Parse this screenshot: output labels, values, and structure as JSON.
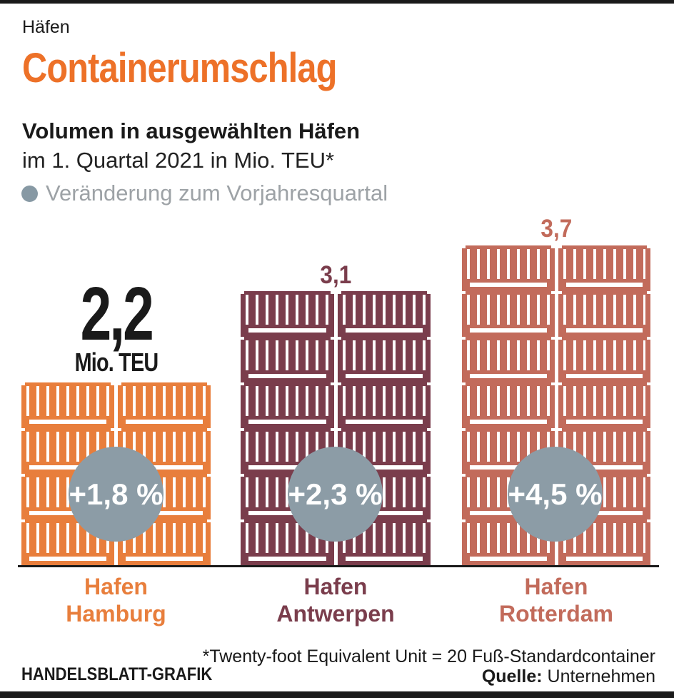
{
  "header": {
    "kicker": "Häfen",
    "title": "Containerumschlag",
    "subtitle_bold": "Volumen in ausgewählten Häfen",
    "subtitle": "im 1. Quartal 2021 in Mio. TEU*",
    "legend_label": "Veränderung zum Vorjahresquartal"
  },
  "chart_data": {
    "type": "bar",
    "title": "Containerumschlag",
    "subtitle": "Volumen in ausgewählten Häfen im 1. Quartal 2021 in Mio. TEU*",
    "unit": "Mio. TEU",
    "legend": "Veränderung zum Vorjahresquartal (gray circle on each bar)",
    "categories": [
      "Hafen Hamburg",
      "Hafen Antwerpen",
      "Hafen Rotterdam"
    ],
    "values": [
      2.2,
      3.1,
      3.7
    ],
    "value_labels": [
      "2,2",
      "3,1",
      "3,7"
    ],
    "series": [
      {
        "name": "Volumen Q1 2021 (Mio. TEU)",
        "values": [
          2.2,
          3.1,
          3.7
        ]
      },
      {
        "name": "Veränderung zum Vorjahresquartal (%)",
        "values": [
          1.8,
          2.3,
          4.5
        ]
      }
    ],
    "change_labels": [
      "+1,8 %",
      "+2,3 %",
      "+4,5 %"
    ],
    "bar_colors": [
      "#E87E3C",
      "#7A3D4C",
      "#C26B5B"
    ],
    "bar_style": "stacked shipping containers, 2 columns per bar",
    "container_rows_per_bar": [
      4,
      6,
      7
    ],
    "ylim": [
      0,
      4
    ],
    "grid": false,
    "legend_position": "top-left under subtitle"
  },
  "bars": [
    {
      "label_line1": "Hafen",
      "label_line2": "Hamburg",
      "value_label": "2,2",
      "unit_label": "Mio. TEU",
      "change": "+1,8 %",
      "color": "#E87E3C",
      "rows": 4
    },
    {
      "label_line1": "Hafen",
      "label_line2": "Antwerpen",
      "value_label": "3,1",
      "change": "+2,3 %",
      "color": "#7A3D4C",
      "rows": 6
    },
    {
      "label_line1": "Hafen",
      "label_line2": "Rotterdam",
      "value_label": "3,7",
      "change": "+4,5 %",
      "color": "#C26B5B",
      "rows": 7
    }
  ],
  "footer": {
    "brand": "HANDELSBLATT-GRAFIK",
    "footnote": "*Twenty-foot Equivalent Unit = 20 Fuß-Standardcontainer",
    "source_label": "Quelle:",
    "source_value": "Unternehmen"
  },
  "colors": {
    "title_orange": "#ED7128",
    "hamburg_orange": "#E87E3C",
    "antwerp_maroon": "#7A3D4C",
    "rotterdam_salmon": "#C26B5B",
    "circle_gray": "#8C9CA6",
    "legend_gray": "#9DA2A6",
    "rule_black": "#1a1a1a"
  }
}
